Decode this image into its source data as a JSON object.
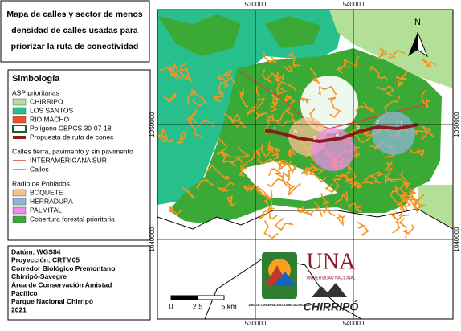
{
  "title": [
    "Mapa de calles y sector de menos",
    "densidad de calles usadas para",
    "priorizar la ruta de conectividad"
  ],
  "legend": {
    "title": "Simbología",
    "groups": [
      {
        "heading": "ASP prioritarias",
        "items": [
          "CHIRRIPO",
          "LOS SANTOS",
          "RIO MACHO",
          "Polígono CBPCS 30-07-18",
          "Propuesta de ruta de conec"
        ]
      },
      {
        "heading": "Calles tierra, pavimento y sin pavimento",
        "items": [
          "INTERAMERICANA SUR",
          "Calles"
        ]
      },
      {
        "heading": "Radio de Poblados",
        "items": [
          "BOQUETE",
          "HERRADURA",
          "PALMITAL",
          "Cobertura forestal prioritaria"
        ]
      }
    ]
  },
  "info": [
    "Datúm: WGS84",
    "Proyección: CRTM05",
    "Corredor Biológico Premontano",
    "Chirripó-Savegre",
    "Área de Conservación Amistad",
    "Pacífico",
    "Parque Nacional Chirripó",
    "2021"
  ],
  "map": {
    "x_labels": [
      530000,
      540000
    ],
    "y_labels": [
      1050000,
      1040000
    ],
    "north": "N",
    "scale": [
      "0",
      "2.5",
      "5 km"
    ],
    "route_labels": [
      "7",
      "6",
      "5",
      "4",
      "3",
      "2",
      "1"
    ]
  },
  "logos": {
    "una": "UNA",
    "una_sub": "UNIVERSIDAD NACIONAL",
    "acla": "ÁREA DE CONSERVACIÓN LA AMISTAD-PACÍFICO",
    "chirripo": "CHIRRIPÓ"
  }
}
